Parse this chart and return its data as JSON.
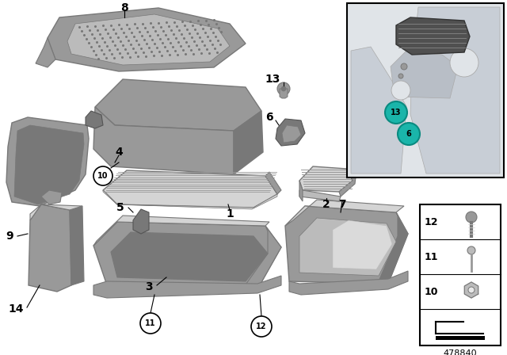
{
  "bg_color": "#ffffff",
  "diagram_number": "478840",
  "gray_dark": "#787878",
  "gray_mid": "#999999",
  "gray_light": "#bbbbbb",
  "gray_pale": "#d4d4d4",
  "gray_very_pale": "#e8e8e8",
  "teal": "#1ab5aa",
  "teal_dark": "#0a8a80",
  "inset_bg": "#e0e4e8",
  "inset_body": "#c8cdd4"
}
